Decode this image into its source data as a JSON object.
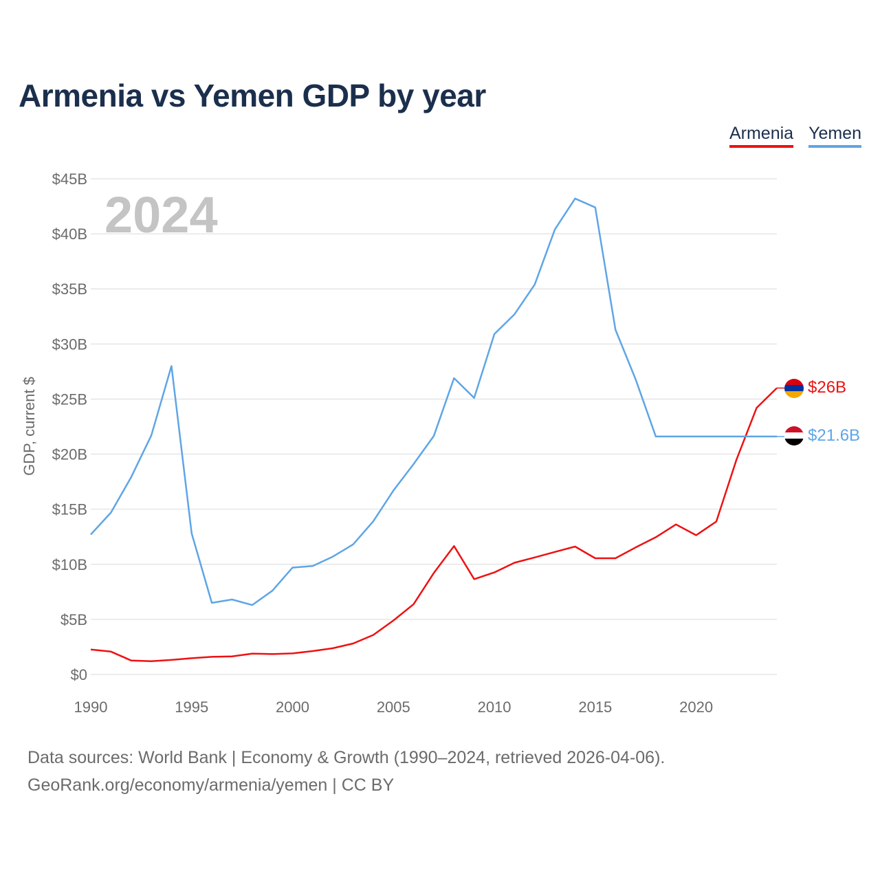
{
  "title": "Armenia vs Yemen GDP by year",
  "legend": [
    {
      "label": "Armenia",
      "color": "#ee1111"
    },
    {
      "label": "Yemen",
      "color": "#5ea5e6"
    }
  ],
  "source": {
    "line1": "Data sources: World Bank | Economy & Growth (1990–2024, retrieved 2026-04-06).",
    "line2": "GeoRank.org/economy/armenia/yemen | CC BY"
  },
  "chart_data": {
    "type": "line",
    "title": "Armenia vs Yemen GDP by year",
    "year_watermark": "2024",
    "xlabel": "",
    "ylabel": "GDP, current $",
    "xlim": [
      1990,
      2024
    ],
    "ylim": [
      0,
      45
    ],
    "x_ticks": [
      1990,
      1995,
      2000,
      2005,
      2010,
      2015,
      2020
    ],
    "y_ticks": [
      0,
      5,
      10,
      15,
      20,
      25,
      30,
      35,
      40,
      45
    ],
    "y_tick_labels": [
      "$0",
      "$5B",
      "$10B",
      "$15B",
      "$20B",
      "$25B",
      "$30B",
      "$35B",
      "$40B",
      "$45B"
    ],
    "x": [
      1990,
      1991,
      1992,
      1993,
      1994,
      1995,
      1996,
      1997,
      1998,
      1999,
      2000,
      2001,
      2002,
      2003,
      2004,
      2005,
      2006,
      2007,
      2008,
      2009,
      2010,
      2011,
      2012,
      2013,
      2014,
      2015,
      2016,
      2017,
      2018,
      2019,
      2020,
      2021,
      2022,
      2023,
      2024
    ],
    "series": [
      {
        "name": "Armenia",
        "color": "#ee1111",
        "end_label": "$26B",
        "flag": "armenia-flag",
        "values": [
          2.26,
          2.07,
          1.27,
          1.2,
          1.32,
          1.47,
          1.6,
          1.64,
          1.89,
          1.85,
          1.91,
          2.12,
          2.38,
          2.81,
          3.58,
          4.9,
          6.38,
          9.21,
          11.66,
          8.65,
          9.26,
          10.14,
          10.62,
          11.12,
          11.61,
          10.55,
          10.55,
          11.53,
          12.46,
          13.62,
          12.64,
          13.88,
          19.51,
          24.21,
          26.0
        ]
      },
      {
        "name": "Yemen",
        "color": "#5ea5e6",
        "end_label": "$21.6B",
        "flag": "yemen-flag",
        "values": [
          12.7,
          14.7,
          17.9,
          21.7,
          28.0,
          12.8,
          6.5,
          6.8,
          6.3,
          7.6,
          9.7,
          9.85,
          10.7,
          11.8,
          13.9,
          16.7,
          19.1,
          21.65,
          26.9,
          25.1,
          30.9,
          32.7,
          35.4,
          40.4,
          43.2,
          42.4,
          31.3,
          26.8,
          21.6,
          21.6,
          21.6,
          21.6,
          21.6,
          21.6,
          21.6
        ]
      }
    ]
  }
}
